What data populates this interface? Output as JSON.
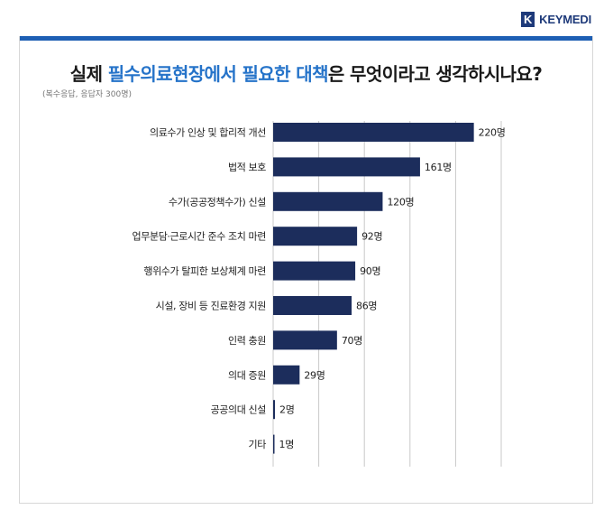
{
  "brand": {
    "mark": "K",
    "name": "KEYMEDI"
  },
  "header": {
    "title_parts": [
      {
        "text": "실제 ",
        "highlight": false
      },
      {
        "text": "필수의료현장에서 필요한 대책",
        "highlight": true
      },
      {
        "text": "은 무엇이라고 생각하시나요?",
        "highlight": false
      }
    ],
    "subtitle": "(복수응답, 응답자 300명)"
  },
  "colors": {
    "bar": "#1c2d5c",
    "accent": "#2573c9",
    "top_bar": "#1e5fb4",
    "grid": "#c9c9c9"
  },
  "chart_data": {
    "type": "bar",
    "orientation": "horizontal",
    "categories": [
      "의료수가 인상 및 합리적 개선",
      "법적 보호",
      "수가(공공정책수가) 신설",
      "업무분담·근로시간 준수 조치 마련",
      "행위수가 탈피한 보상체계 마련",
      "시설, 장비 등 진료환경 지원",
      "인력 충원",
      "의대 증원",
      "공공의대 신설",
      "기타"
    ],
    "values": [
      220,
      161,
      120,
      92,
      90,
      86,
      70,
      29,
      2,
      1
    ],
    "value_labels": [
      "220명",
      "161명",
      "120명",
      "92명",
      "90명",
      "86명",
      "70명",
      "29명",
      "2명",
      "1명"
    ],
    "xlim": [
      0,
      250
    ],
    "grid": true
  }
}
